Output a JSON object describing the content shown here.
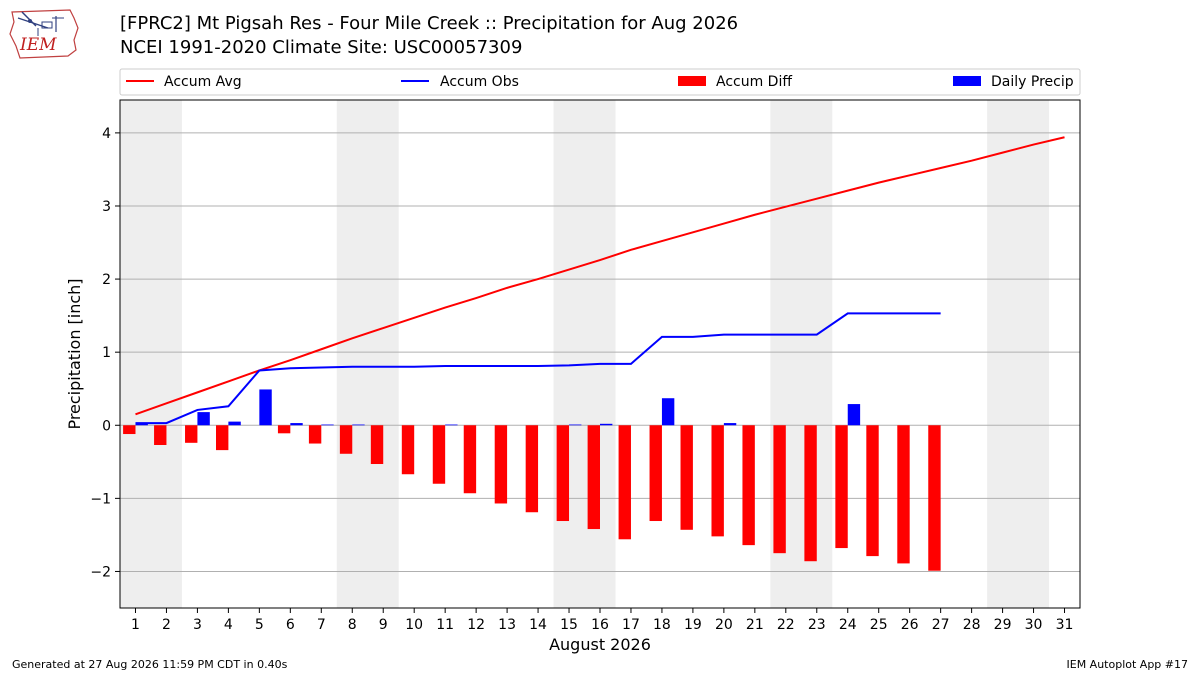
{
  "header": {
    "title_line1": "[FPRC2] Mt Pigsah Res - Four Mile Creek :: Precipitation for Aug 2026",
    "title_line2": "NCEI 1991-2020 Climate Site: USC00057309",
    "logo_text": "IEM"
  },
  "footer": {
    "generated": "Generated at 27 Aug 2026 11:59 PM CDT in 0.40s",
    "app": "IEM Autoplot App #17"
  },
  "colors": {
    "accum_avg": "#ff0000",
    "accum_obs": "#0000ff",
    "accum_diff": "#ff0000",
    "daily_precip": "#0000ff",
    "weekend_shade": "#eeeeee",
    "grid": "#b0b0b0"
  },
  "chart_data": {
    "type": "bar",
    "title": "[FPRC2] Mt Pigsah Res - Four Mile Creek :: Precipitation for Aug 2026",
    "xlabel": "August 2026",
    "ylabel": "Precipitation [inch]",
    "ylim": [
      -2.5,
      4.45
    ],
    "xlim": [
      0.5,
      31.5
    ],
    "yticks": [
      -2,
      -1,
      0,
      1,
      2,
      3,
      4
    ],
    "ytick_labels": [
      "−2",
      "−1",
      "0",
      "1",
      "2",
      "3",
      "4"
    ],
    "xticks": [
      1,
      2,
      3,
      4,
      5,
      6,
      7,
      8,
      9,
      10,
      11,
      12,
      13,
      14,
      15,
      16,
      17,
      18,
      19,
      20,
      21,
      22,
      23,
      24,
      25,
      26,
      27,
      28,
      29,
      30,
      31
    ],
    "grid": "horizontal",
    "legend_position": "top",
    "weekend_spans": [
      [
        1,
        2
      ],
      [
        8,
        9
      ],
      [
        15,
        16
      ],
      [
        22,
        23
      ],
      [
        29,
        30
      ]
    ],
    "series": [
      {
        "name": "Accum Avg",
        "kind": "line",
        "x": [
          1,
          2,
          3,
          4,
          5,
          6,
          7,
          8,
          9,
          10,
          11,
          12,
          13,
          14,
          15,
          16,
          17,
          18,
          19,
          20,
          21,
          22,
          23,
          24,
          25,
          26,
          27,
          28,
          29,
          30,
          31
        ],
        "values": [
          0.15,
          0.3,
          0.45,
          0.6,
          0.75,
          0.89,
          1.04,
          1.19,
          1.33,
          1.47,
          1.61,
          1.74,
          1.88,
          2.0,
          2.13,
          2.26,
          2.4,
          2.52,
          2.64,
          2.76,
          2.88,
          2.99,
          3.1,
          3.21,
          3.32,
          3.42,
          3.52,
          3.62,
          3.73,
          3.84,
          3.94
        ]
      },
      {
        "name": "Accum Obs",
        "kind": "line",
        "x": [
          1,
          2,
          3,
          4,
          5,
          6,
          7,
          8,
          9,
          10,
          11,
          12,
          13,
          14,
          15,
          16,
          17,
          18,
          19,
          20,
          21,
          22,
          23,
          24,
          25,
          26,
          27
        ],
        "values": [
          0.03,
          0.03,
          0.21,
          0.26,
          0.75,
          0.78,
          0.79,
          0.8,
          0.8,
          0.8,
          0.81,
          0.81,
          0.81,
          0.81,
          0.82,
          0.84,
          0.84,
          1.21,
          1.21,
          1.24,
          1.24,
          1.24,
          1.24,
          1.53,
          1.53,
          1.53,
          1.53
        ]
      },
      {
        "name": "Accum Diff",
        "kind": "bar",
        "x": [
          1,
          2,
          3,
          4,
          5,
          6,
          7,
          8,
          9,
          10,
          11,
          12,
          13,
          14,
          15,
          16,
          17,
          18,
          19,
          20,
          21,
          22,
          23,
          24,
          25,
          26,
          27
        ],
        "values": [
          -0.12,
          -0.27,
          -0.24,
          -0.34,
          0.0,
          -0.11,
          -0.25,
          -0.39,
          -0.53,
          -0.67,
          -0.8,
          -0.93,
          -1.07,
          -1.19,
          -1.31,
          -1.42,
          -1.56,
          -1.31,
          -1.43,
          -1.52,
          -1.64,
          -1.75,
          -1.86,
          -1.68,
          -1.79,
          -1.89,
          -1.99
        ]
      },
      {
        "name": "Daily Precip",
        "kind": "bar",
        "x": [
          1,
          2,
          3,
          4,
          5,
          6,
          7,
          8,
          9,
          10,
          11,
          12,
          13,
          14,
          15,
          16,
          17,
          18,
          19,
          20,
          21,
          22,
          23,
          24,
          25,
          26,
          27
        ],
        "values": [
          0.03,
          0.0,
          0.18,
          0.05,
          0.49,
          0.03,
          0.01,
          0.01,
          0.0,
          0.0,
          0.01,
          0.0,
          0.0,
          0.0,
          0.01,
          0.02,
          0.0,
          0.37,
          0.0,
          0.03,
          0.0,
          0.0,
          0.0,
          0.29,
          0.0,
          0.0,
          0.0
        ]
      }
    ]
  }
}
